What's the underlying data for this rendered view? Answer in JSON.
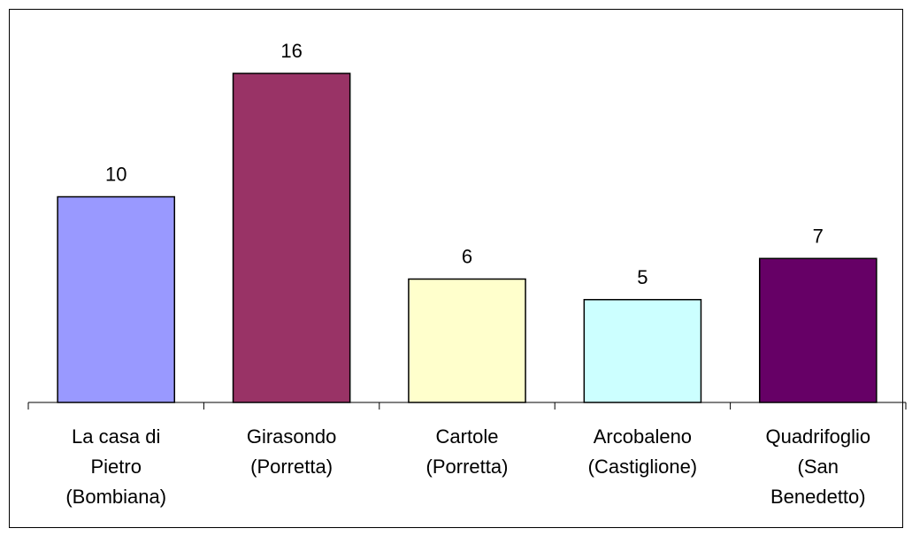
{
  "chart_data": {
    "type": "bar",
    "categories": [
      "La casa di\nPietro\n(Bombiana)",
      "Girasondo\n(Porretta)",
      "Cartole\n(Porretta)",
      "Arcobaleno\n(Castiglione)",
      "Quadrifoglio\n(San\nBenedetto)"
    ],
    "values": [
      10,
      16,
      6,
      5,
      7
    ],
    "colors": [
      "#9999ff",
      "#993366",
      "#ffffcc",
      "#ccffff",
      "#660066"
    ],
    "ylim": [
      0,
      16
    ]
  }
}
